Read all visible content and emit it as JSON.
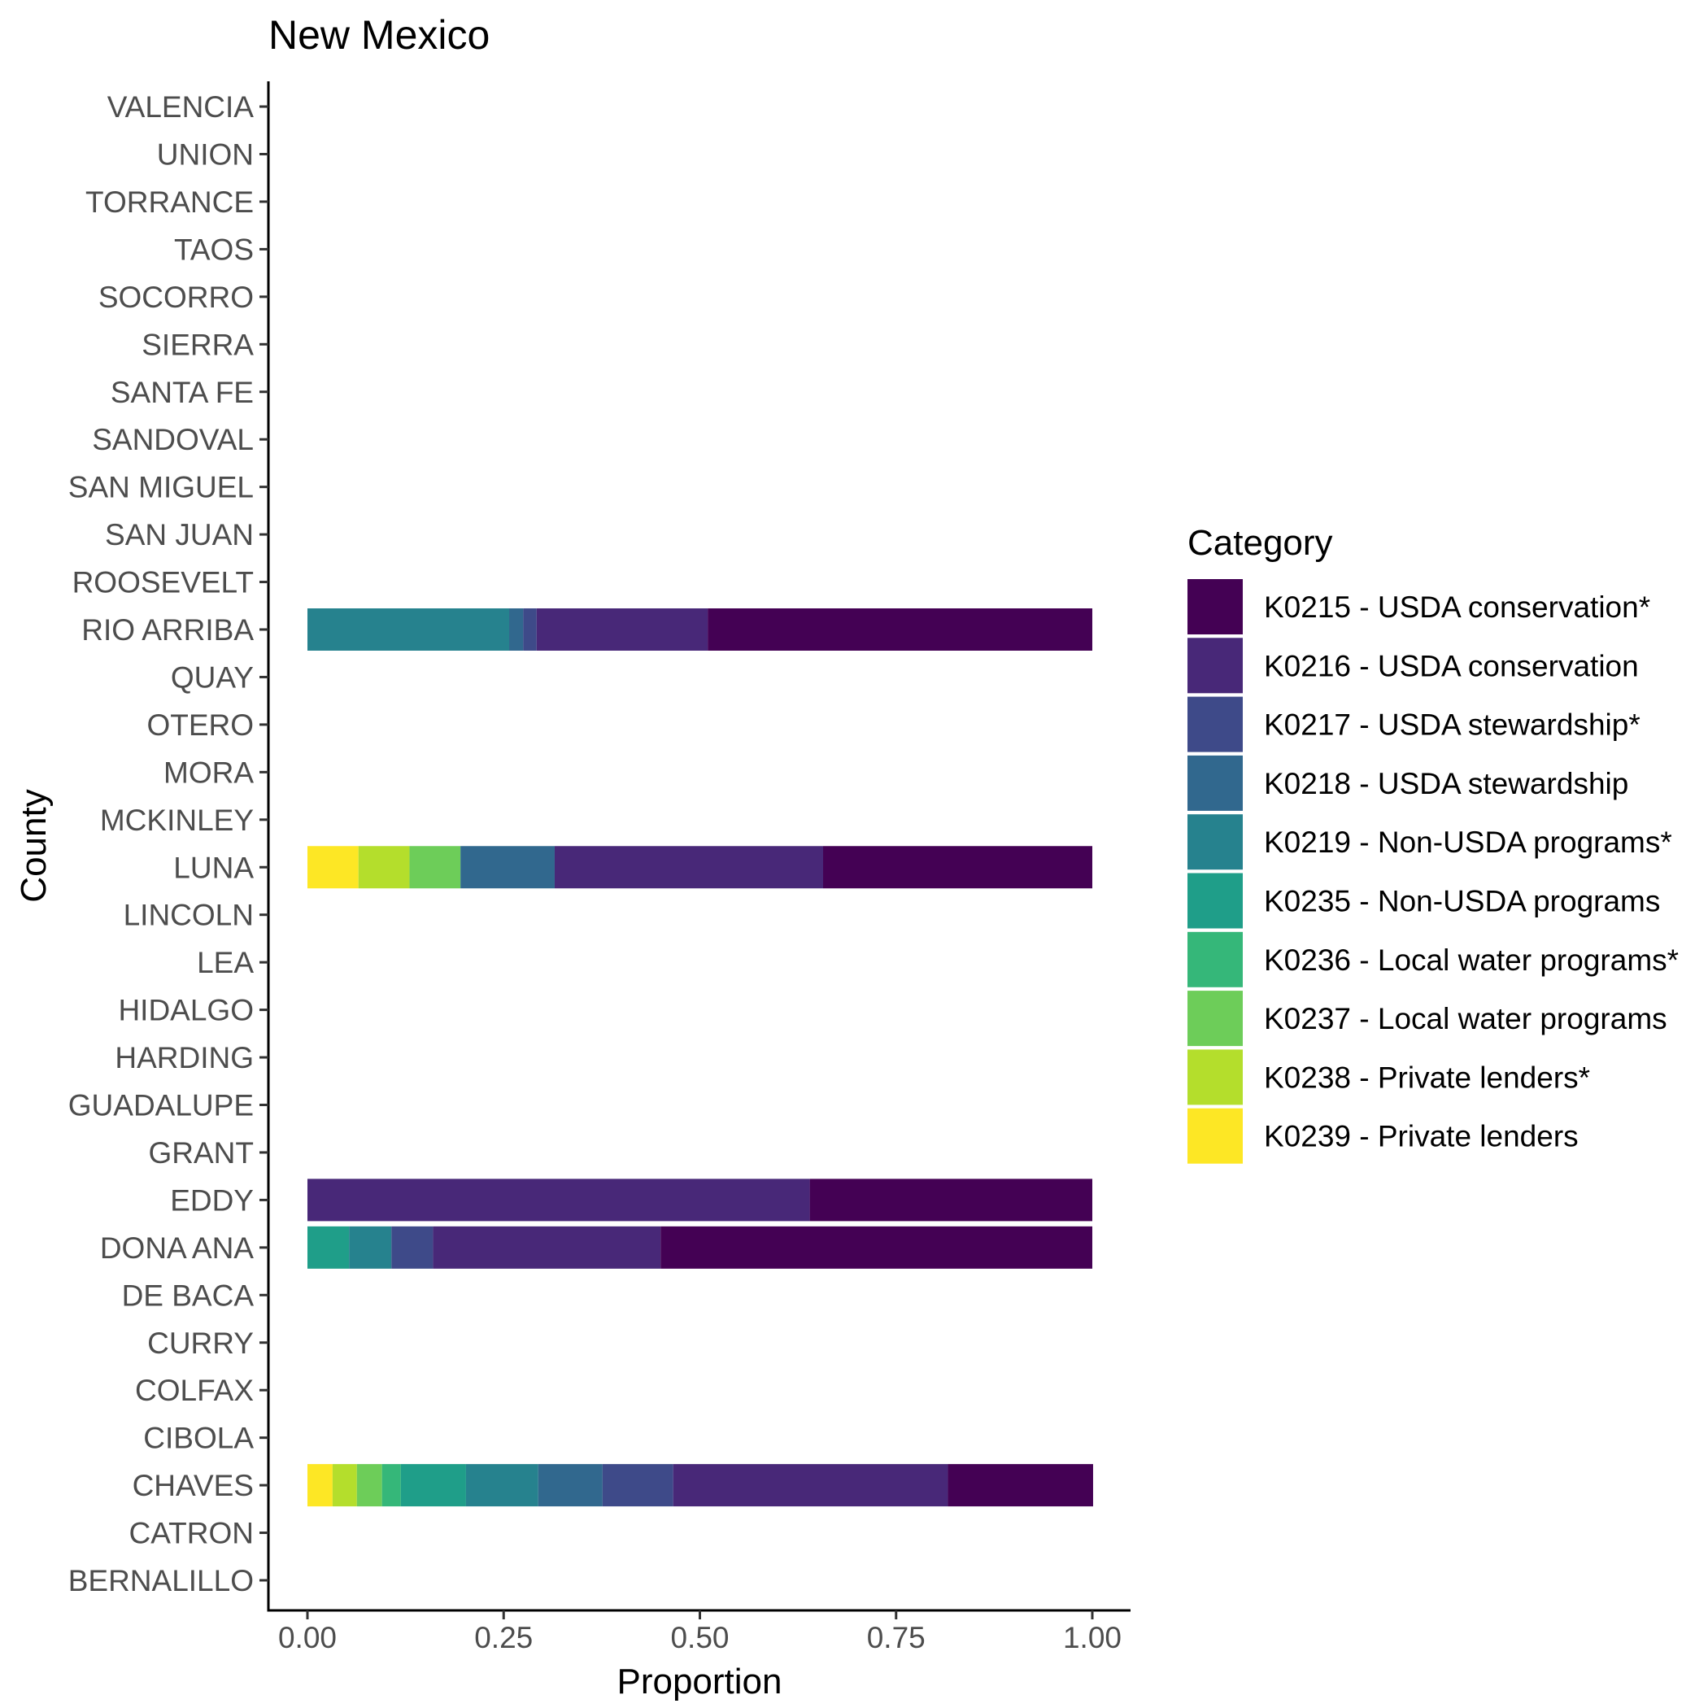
{
  "chart_data": {
    "type": "bar",
    "orientation": "horizontal",
    "stacked": true,
    "title": "New Mexico",
    "xlabel": "Proportion",
    "ylabel": "County",
    "xlim": [
      0,
      1
    ],
    "x_ticks": [
      "0.00",
      "0.25",
      "0.50",
      "0.75",
      "1.00"
    ],
    "x_tick_values": [
      0,
      0.25,
      0.5,
      0.75,
      1
    ],
    "grid": false,
    "legend_position": "right",
    "legend_title": "Category",
    "categories": [
      "BERNALILLO",
      "CATRON",
      "CHAVES",
      "CIBOLA",
      "COLFAX",
      "CURRY",
      "DE BACA",
      "DONA ANA",
      "EDDY",
      "GRANT",
      "GUADALUPE",
      "HARDING",
      "HIDALGO",
      "LEA",
      "LINCOLN",
      "LUNA",
      "MCKINLEY",
      "MORA",
      "OTERO",
      "QUAY",
      "RIO ARRIBA",
      "ROOSEVELT",
      "SAN JUAN",
      "SAN MIGUEL",
      "SANDOVAL",
      "SANTA FE",
      "SIERRA",
      "SOCORRO",
      "TAOS",
      "TORRANCE",
      "UNION",
      "VALENCIA"
    ],
    "series": [
      {
        "name": "K0215 - USDA conservation*",
        "color": "#440154",
        "values": [
          0,
          0,
          0.185,
          0,
          0,
          0,
          0,
          0.55,
          0.36,
          0,
          0,
          0,
          0,
          0,
          0,
          0.343,
          0,
          0,
          0,
          0,
          0.49,
          0,
          0,
          0,
          0,
          0,
          0,
          0,
          0,
          0,
          0,
          0
        ]
      },
      {
        "name": "K0216 - USDA conservation",
        "color": "#482878",
        "values": [
          0,
          0,
          0.35,
          0,
          0,
          0,
          0,
          0.29,
          0.64,
          0,
          0,
          0,
          0,
          0,
          0,
          0.342,
          0,
          0,
          0,
          0,
          0.218,
          0,
          0,
          0,
          0,
          0,
          0,
          0,
          0,
          0,
          0,
          0
        ]
      },
      {
        "name": "K0217 - USDA stewardship*",
        "color": "#3E4A89",
        "values": [
          0,
          0,
          0.09,
          0,
          0,
          0,
          0,
          0.053,
          0,
          0,
          0,
          0,
          0,
          0,
          0,
          0,
          0,
          0,
          0,
          0,
          0.017,
          0,
          0,
          0,
          0,
          0,
          0,
          0,
          0,
          0,
          0,
          0
        ]
      },
      {
        "name": "K0218 - USDA stewardship",
        "color": "#31688E",
        "values": [
          0,
          0,
          0.082,
          0,
          0,
          0,
          0,
          0,
          0,
          0,
          0,
          0,
          0,
          0,
          0,
          0.12,
          0,
          0,
          0,
          0,
          0.018,
          0,
          0,
          0,
          0,
          0,
          0,
          0,
          0,
          0,
          0,
          0
        ]
      },
      {
        "name": "K0219 - Non-USDA programs*",
        "color": "#26828E",
        "values": [
          0,
          0,
          0.092,
          0,
          0,
          0,
          0,
          0.054,
          0,
          0,
          0,
          0,
          0,
          0,
          0,
          0,
          0,
          0,
          0,
          0,
          0.257,
          0,
          0,
          0,
          0,
          0,
          0,
          0,
          0,
          0,
          0,
          0
        ]
      },
      {
        "name": "K0235 - Non-USDA programs",
        "color": "#1F9E89",
        "values": [
          0,
          0,
          0.083,
          0,
          0,
          0,
          0,
          0.053,
          0,
          0,
          0,
          0,
          0,
          0,
          0,
          0,
          0,
          0,
          0,
          0,
          0,
          0,
          0,
          0,
          0,
          0,
          0,
          0,
          0,
          0,
          0,
          0
        ]
      },
      {
        "name": "K0236 - Local water programs*",
        "color": "#35B779",
        "values": [
          0,
          0,
          0.024,
          0,
          0,
          0,
          0,
          0,
          0,
          0,
          0,
          0,
          0,
          0,
          0,
          0,
          0,
          0,
          0,
          0,
          0,
          0,
          0,
          0,
          0,
          0,
          0,
          0,
          0,
          0,
          0,
          0
        ]
      },
      {
        "name": "K0237 - Local water programs",
        "color": "#6DCD59",
        "values": [
          0,
          0,
          0.032,
          0,
          0,
          0,
          0,
          0,
          0,
          0,
          0,
          0,
          0,
          0,
          0,
          0.065,
          0,
          0,
          0,
          0,
          0,
          0,
          0,
          0,
          0,
          0,
          0,
          0,
          0,
          0,
          0,
          0
        ]
      },
      {
        "name": "K0238 - Private lenders*",
        "color": "#B4DE2C",
        "values": [
          0,
          0,
          0.031,
          0,
          0,
          0,
          0,
          0,
          0,
          0,
          0,
          0,
          0,
          0,
          0,
          0.065,
          0,
          0,
          0,
          0,
          0,
          0,
          0,
          0,
          0,
          0,
          0,
          0,
          0,
          0,
          0,
          0
        ]
      },
      {
        "name": "K0239 - Private lenders",
        "color": "#FDE725",
        "values": [
          0,
          0,
          0.032,
          0,
          0,
          0,
          0,
          0,
          0,
          0,
          0,
          0,
          0,
          0,
          0,
          0.065,
          0,
          0,
          0,
          0,
          0,
          0,
          0,
          0,
          0,
          0,
          0,
          0,
          0,
          0,
          0,
          0
        ]
      }
    ]
  }
}
